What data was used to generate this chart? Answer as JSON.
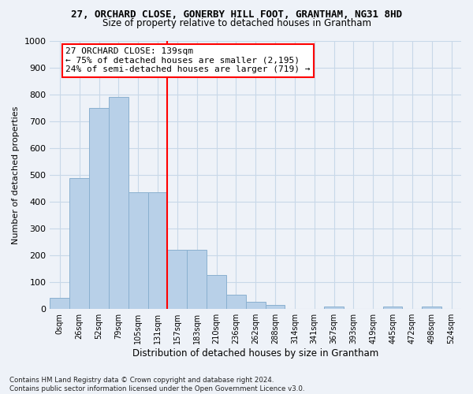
{
  "title": "27, ORCHARD CLOSE, GONERBY HILL FOOT, GRANTHAM, NG31 8HD",
  "subtitle": "Size of property relative to detached houses in Grantham",
  "xlabel": "Distribution of detached houses by size in Grantham",
  "ylabel": "Number of detached properties",
  "bar_color": "#b8d0e8",
  "bar_edge_color": "#8ab0d0",
  "background_color": "#eef2f8",
  "grid_color": "#c8d8e8",
  "vline_color": "red",
  "vline_pos": 5.5,
  "annotation_text": "27 ORCHARD CLOSE: 139sqm\n← 75% of detached houses are smaller (2,195)\n24% of semi-detached houses are larger (719) →",
  "annotation_box_color": "white",
  "annotation_box_edge": "red",
  "bin_labels": [
    "0sqm",
    "26sqm",
    "52sqm",
    "79sqm",
    "105sqm",
    "131sqm",
    "157sqm",
    "183sqm",
    "210sqm",
    "236sqm",
    "262sqm",
    "288sqm",
    "314sqm",
    "341sqm",
    "367sqm",
    "393sqm",
    "419sqm",
    "445sqm",
    "472sqm",
    "498sqm",
    "524sqm"
  ],
  "bar_heights": [
    42,
    487,
    748,
    790,
    435,
    435,
    220,
    220,
    128,
    52,
    27,
    14,
    0,
    0,
    8,
    0,
    0,
    8,
    0,
    8,
    0
  ],
  "ylim": [
    0,
    1000
  ],
  "yticks": [
    0,
    100,
    200,
    300,
    400,
    500,
    600,
    700,
    800,
    900,
    1000
  ],
  "footnote": "Contains HM Land Registry data © Crown copyright and database right 2024.\nContains public sector information licensed under the Open Government Licence v3.0."
}
